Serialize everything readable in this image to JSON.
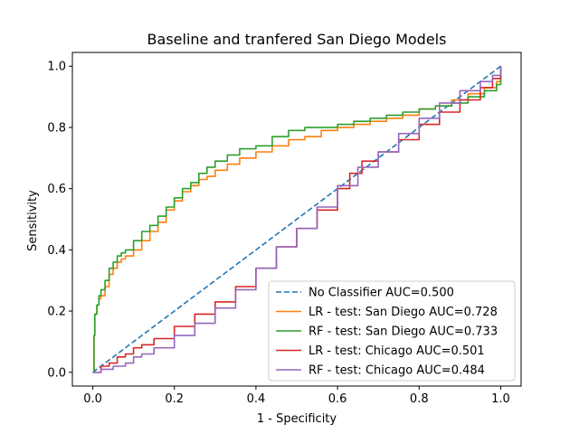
{
  "chart_data": {
    "type": "line",
    "title": "Baseline and tranfered San Diego Models",
    "xlabel": "1 - Specificity",
    "ylabel": "Sensitivity",
    "xlim": [
      -0.05,
      1.05
    ],
    "ylim": [
      -0.045,
      1.045
    ],
    "xticks": [
      0.0,
      0.2,
      0.4,
      0.6,
      0.8,
      1.0
    ],
    "yticks": [
      0.0,
      0.2,
      0.4,
      0.6,
      0.8,
      1.0
    ],
    "tick_labels_x": [
      "0.0",
      "0.2",
      "0.4",
      "0.6",
      "0.8",
      "1.0"
    ],
    "tick_labels_y": [
      "0.0",
      "0.2",
      "0.4",
      "0.6",
      "0.8",
      "1.0"
    ],
    "grid": false,
    "legend_position": "lower-right",
    "series": [
      {
        "name": "No Classifier AUC=0.500",
        "color": "#1f77b4",
        "dashed": true,
        "x": [
          0.0,
          1.0
        ],
        "y": [
          0.0,
          1.0
        ]
      },
      {
        "name": "LR - test: San Diego AUC=0.728",
        "color": "#ff7f0e",
        "dashed": false,
        "x": [
          0.0,
          0.003,
          0.005,
          0.01,
          0.015,
          0.02,
          0.03,
          0.04,
          0.05,
          0.06,
          0.07,
          0.08,
          0.1,
          0.12,
          0.14,
          0.16,
          0.18,
          0.2,
          0.22,
          0.24,
          0.26,
          0.28,
          0.3,
          0.33,
          0.36,
          0.4,
          0.44,
          0.48,
          0.52,
          0.56,
          0.6,
          0.64,
          0.68,
          0.72,
          0.76,
          0.8,
          0.84,
          0.88,
          0.92,
          0.96,
          0.99,
          1.0
        ],
        "y": [
          0.0,
          0.12,
          0.19,
          0.22,
          0.24,
          0.25,
          0.28,
          0.32,
          0.34,
          0.36,
          0.37,
          0.38,
          0.4,
          0.43,
          0.46,
          0.49,
          0.53,
          0.56,
          0.59,
          0.61,
          0.63,
          0.64,
          0.66,
          0.68,
          0.7,
          0.72,
          0.74,
          0.76,
          0.77,
          0.79,
          0.8,
          0.81,
          0.82,
          0.83,
          0.84,
          0.86,
          0.87,
          0.89,
          0.91,
          0.93,
          0.95,
          1.0
        ]
      },
      {
        "name": "RF - test: San Diego AUC=0.733",
        "color": "#2ca02c",
        "dashed": false,
        "x": [
          0.0,
          0.003,
          0.005,
          0.01,
          0.015,
          0.02,
          0.03,
          0.04,
          0.05,
          0.06,
          0.07,
          0.08,
          0.1,
          0.12,
          0.14,
          0.16,
          0.18,
          0.2,
          0.22,
          0.24,
          0.26,
          0.28,
          0.3,
          0.33,
          0.36,
          0.4,
          0.44,
          0.48,
          0.52,
          0.56,
          0.6,
          0.64,
          0.68,
          0.72,
          0.76,
          0.8,
          0.84,
          0.88,
          0.92,
          0.96,
          0.99,
          1.0
        ],
        "y": [
          0.0,
          0.12,
          0.19,
          0.22,
          0.25,
          0.27,
          0.3,
          0.34,
          0.36,
          0.38,
          0.39,
          0.4,
          0.43,
          0.46,
          0.48,
          0.51,
          0.54,
          0.57,
          0.6,
          0.62,
          0.65,
          0.67,
          0.69,
          0.71,
          0.73,
          0.74,
          0.77,
          0.79,
          0.8,
          0.8,
          0.81,
          0.82,
          0.83,
          0.84,
          0.85,
          0.86,
          0.87,
          0.88,
          0.9,
          0.92,
          0.94,
          1.0
        ]
      },
      {
        "name": "LR - test: Chicago AUC=0.501",
        "color": "#d62728",
        "dashed": false,
        "x": [
          0.0,
          0.02,
          0.04,
          0.06,
          0.08,
          0.1,
          0.12,
          0.15,
          0.2,
          0.25,
          0.3,
          0.35,
          0.4,
          0.45,
          0.5,
          0.55,
          0.6,
          0.63,
          0.66,
          0.7,
          0.75,
          0.8,
          0.85,
          0.9,
          0.95,
          0.98,
          1.0
        ],
        "y": [
          0.0,
          0.02,
          0.03,
          0.05,
          0.06,
          0.08,
          0.09,
          0.11,
          0.15,
          0.19,
          0.23,
          0.28,
          0.34,
          0.41,
          0.47,
          0.53,
          0.6,
          0.65,
          0.69,
          0.72,
          0.76,
          0.81,
          0.85,
          0.89,
          0.93,
          0.96,
          1.0
        ]
      },
      {
        "name": "RF - test: Chicago AUC=0.484",
        "color": "#9467bd",
        "dashed": false,
        "x": [
          0.0,
          0.02,
          0.05,
          0.08,
          0.1,
          0.12,
          0.15,
          0.2,
          0.25,
          0.3,
          0.35,
          0.4,
          0.45,
          0.5,
          0.55,
          0.6,
          0.65,
          0.7,
          0.75,
          0.8,
          0.85,
          0.9,
          0.95,
          0.98,
          1.0
        ],
        "y": [
          0.0,
          0.01,
          0.02,
          0.03,
          0.05,
          0.06,
          0.08,
          0.12,
          0.16,
          0.21,
          0.27,
          0.34,
          0.41,
          0.47,
          0.54,
          0.61,
          0.67,
          0.72,
          0.78,
          0.83,
          0.88,
          0.92,
          0.95,
          0.97,
          1.0
        ]
      }
    ]
  }
}
